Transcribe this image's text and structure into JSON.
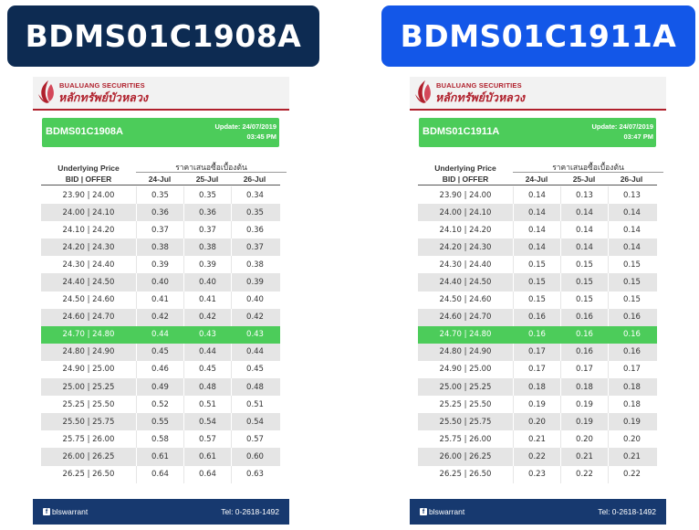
{
  "titles": {
    "left": "BDMS01C1908A",
    "right": "BDMS01C1911A"
  },
  "colors": {
    "navy": "#0d2b52",
    "blue": "#1357e8",
    "green": "#4ccc5a",
    "red": "#b0202c",
    "footer": "#17396f"
  },
  "brand": {
    "en": "BUALUANG SECURITIES",
    "th": "หลักทรัพย์บัวหลวง"
  },
  "columns": {
    "underlying": "Underlying Price",
    "bidoffer": "BID | OFFER",
    "group": "ราคาเสนอซื้อเบื้องต้น",
    "dates": [
      "24-Jul",
      "25-Jul",
      "26-Jul"
    ]
  },
  "footer": {
    "icon": "facebook-icon",
    "social": "blswarrant",
    "tel": "Tel: 0-2618-1492"
  },
  "cards": [
    {
      "code": "BDMS01C1908A",
      "update": "Update: 24/07/2019",
      "time": "03:45 PM",
      "highlight_index": 8,
      "rows": [
        [
          "23.90 | 24.00",
          "0.35",
          "0.35",
          "0.34"
        ],
        [
          "24.00 | 24.10",
          "0.36",
          "0.36",
          "0.35"
        ],
        [
          "24.10 | 24.20",
          "0.37",
          "0.37",
          "0.36"
        ],
        [
          "24.20 | 24.30",
          "0.38",
          "0.38",
          "0.37"
        ],
        [
          "24.30 | 24.40",
          "0.39",
          "0.39",
          "0.38"
        ],
        [
          "24.40 | 24.50",
          "0.40",
          "0.40",
          "0.39"
        ],
        [
          "24.50 | 24.60",
          "0.41",
          "0.41",
          "0.40"
        ],
        [
          "24.60 | 24.70",
          "0.42",
          "0.42",
          "0.42"
        ],
        [
          "24.70 | 24.80",
          "0.44",
          "0.43",
          "0.43"
        ],
        [
          "24.80 | 24.90",
          "0.45",
          "0.44",
          "0.44"
        ],
        [
          "24.90 | 25.00",
          "0.46",
          "0.45",
          "0.45"
        ],
        [
          "25.00 | 25.25",
          "0.49",
          "0.48",
          "0.48"
        ],
        [
          "25.25 | 25.50",
          "0.52",
          "0.51",
          "0.51"
        ],
        [
          "25.50 | 25.75",
          "0.55",
          "0.54",
          "0.54"
        ],
        [
          "25.75 | 26.00",
          "0.58",
          "0.57",
          "0.57"
        ],
        [
          "26.00 | 26.25",
          "0.61",
          "0.61",
          "0.60"
        ],
        [
          "26.25 | 26.50",
          "0.64",
          "0.64",
          "0.63"
        ]
      ]
    },
    {
      "code": "BDMS01C1911A",
      "update": "Update: 24/07/2019",
      "time": "03:47 PM",
      "highlight_index": 8,
      "rows": [
        [
          "23.90 | 24.00",
          "0.14",
          "0.13",
          "0.13"
        ],
        [
          "24.00 | 24.10",
          "0.14",
          "0.14",
          "0.14"
        ],
        [
          "24.10 | 24.20",
          "0.14",
          "0.14",
          "0.14"
        ],
        [
          "24.20 | 24.30",
          "0.14",
          "0.14",
          "0.14"
        ],
        [
          "24.30 | 24.40",
          "0.15",
          "0.15",
          "0.15"
        ],
        [
          "24.40 | 24.50",
          "0.15",
          "0.15",
          "0.15"
        ],
        [
          "24.50 | 24.60",
          "0.15",
          "0.15",
          "0.15"
        ],
        [
          "24.60 | 24.70",
          "0.16",
          "0.16",
          "0.16"
        ],
        [
          "24.70 | 24.80",
          "0.16",
          "0.16",
          "0.16"
        ],
        [
          "24.80 | 24.90",
          "0.17",
          "0.16",
          "0.16"
        ],
        [
          "24.90 | 25.00",
          "0.17",
          "0.17",
          "0.17"
        ],
        [
          "25.00 | 25.25",
          "0.18",
          "0.18",
          "0.18"
        ],
        [
          "25.25 | 25.50",
          "0.19",
          "0.19",
          "0.18"
        ],
        [
          "25.50 | 25.75",
          "0.20",
          "0.19",
          "0.19"
        ],
        [
          "25.75 | 26.00",
          "0.21",
          "0.20",
          "0.20"
        ],
        [
          "26.00 | 26.25",
          "0.22",
          "0.21",
          "0.21"
        ],
        [
          "26.25 | 26.50",
          "0.23",
          "0.22",
          "0.22"
        ]
      ]
    }
  ]
}
